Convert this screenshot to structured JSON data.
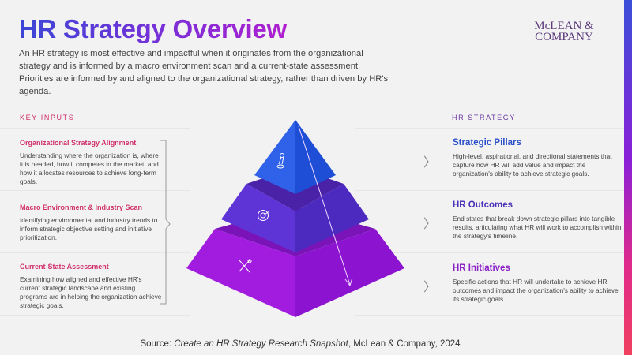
{
  "header": {
    "title": "HR Strategy Overview",
    "intro": "An HR strategy is most effective and impactful when it originates from the organizational strategy and is informed by a macro environment scan and a current-state assessment. Priorities are informed by and aligned to the organizational strategy, rather than driven by HR's agenda.",
    "logo_line1": "McLEAN &",
    "logo_line2": "COMPANY"
  },
  "key_inputs": {
    "heading": "KEY INPUTS",
    "items": [
      {
        "title": "Organizational Strategy Alignment",
        "text": "Understanding where the organization is, where it is headed, how it competes in the market, and how it allocates resources to achieve long-term goals."
      },
      {
        "title": "Macro Environment & Industry Scan",
        "text": "Identifying environmental and industry trends to inform strategic objective setting and initiative prioritization."
      },
      {
        "title": "Current-State Assessment",
        "text": "Examining how aligned and effective HR's current strategic landscape and existing programs are in helping the organization achieve strategic goals."
      }
    ]
  },
  "hr_strategy": {
    "heading": "HR STRATEGY",
    "items": [
      {
        "title": "Strategic Pillars",
        "color": "#2a4fc8",
        "text": "High-level, aspirational, and directional statements that capture how HR will add value and impact the organization's ability to achieve strategic goals."
      },
      {
        "title": "HR Outcomes",
        "color": "#4a2fb8",
        "text": "End states that break down strategic pillars into tangible results, articulating what HR will work to accomplish within the strategy's timeline."
      },
      {
        "title": "HR Initiatives",
        "color": "#8a1fc8",
        "text": "Specific actions that HR will undertake to achieve HR outcomes and impact the organization's ability to achieve its strategic goals."
      }
    ]
  },
  "source": {
    "prefix": "Source: ",
    "title": "Create an HR Strategy Research Snapshot",
    "suffix": ", McLean & Company, 2024"
  }
}
